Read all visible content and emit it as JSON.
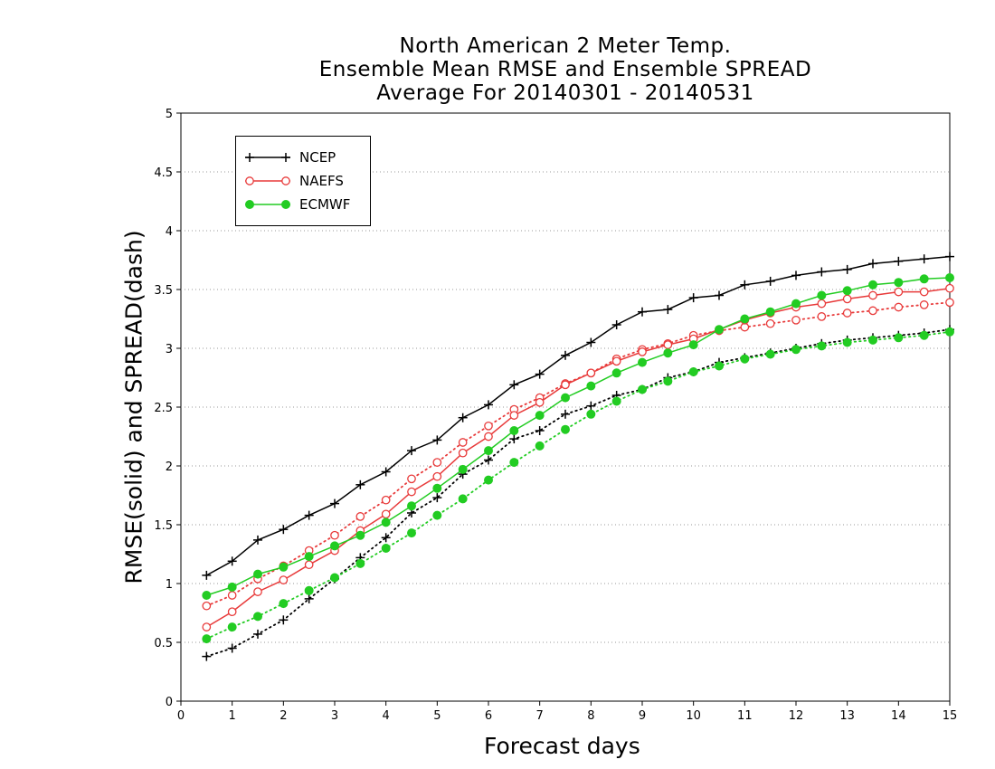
{
  "title_lines": [
    "North American 2 Meter Temp.",
    "Ensemble Mean RMSE and Ensemble SPREAD",
    "Average For 20140301 - 20140531"
  ],
  "chart_data": {
    "type": "line",
    "title": "North American 2 Meter Temp. Ensemble Mean RMSE and Ensemble SPREAD Average For 20140301 - 20140531",
    "xlabel": "Forecast days",
    "ylabel": "RMSE(solid) and SPREAD(dash)",
    "xlim": [
      0,
      15
    ],
    "ylim": [
      0,
      5
    ],
    "x_ticks": [
      "0",
      "1",
      "2",
      "3",
      "4",
      "5",
      "6",
      "7",
      "8",
      "9",
      "10",
      "11",
      "12",
      "13",
      "14",
      "15"
    ],
    "y_ticks": [
      "0",
      "0.5",
      "1",
      "1.5",
      "2",
      "2.5",
      "3",
      "3.5",
      "4",
      "4.5",
      "5"
    ],
    "grid": "horizontal dotted",
    "legend_position": "top-left",
    "x": [
      0.5,
      1,
      1.5,
      2,
      2.5,
      3,
      3.5,
      4,
      4.5,
      5,
      5.5,
      6,
      6.5,
      7,
      7.5,
      8,
      8.5,
      9,
      9.5,
      10,
      10.5,
      11,
      11.5,
      12,
      12.5,
      13,
      13.5,
      14,
      14.5,
      15
    ],
    "series": [
      {
        "name": "NCEP",
        "style": "solid",
        "color": "#000000",
        "marker": "plus",
        "values": [
          1.07,
          1.19,
          1.37,
          1.46,
          1.58,
          1.68,
          1.84,
          1.95,
          2.13,
          2.22,
          2.41,
          2.52,
          2.69,
          2.78,
          2.94,
          3.05,
          3.2,
          3.31,
          3.33,
          3.43,
          3.45,
          3.54,
          3.57,
          3.62,
          3.65,
          3.67,
          3.72,
          3.74,
          3.76,
          3.78
        ]
      },
      {
        "name": "NAEFS",
        "style": "solid",
        "color": "#e83a3a",
        "marker": "open-circle",
        "values": [
          0.63,
          0.76,
          0.93,
          1.03,
          1.16,
          1.28,
          1.45,
          1.59,
          1.78,
          1.91,
          2.11,
          2.25,
          2.43,
          2.54,
          2.69,
          2.79,
          2.89,
          2.97,
          3.03,
          3.08,
          3.16,
          3.24,
          3.3,
          3.35,
          3.38,
          3.42,
          3.45,
          3.48,
          3.48,
          3.51
        ]
      },
      {
        "name": "ECMWF",
        "style": "solid",
        "color": "#22cc22",
        "marker": "filled-circle",
        "values": [
          0.9,
          0.97,
          1.08,
          1.14,
          1.23,
          1.32,
          1.41,
          1.52,
          1.66,
          1.81,
          1.97,
          2.13,
          2.3,
          2.43,
          2.58,
          2.68,
          2.79,
          2.88,
          2.96,
          3.03,
          3.16,
          3.25,
          3.31,
          3.38,
          3.45,
          3.49,
          3.54,
          3.56,
          3.59,
          3.6
        ]
      },
      {
        "name": "NCEP",
        "style": "dash",
        "color": "#000000",
        "marker": "plus",
        "values": [
          0.38,
          0.45,
          0.57,
          0.69,
          0.87,
          1.04,
          1.22,
          1.39,
          1.6,
          1.73,
          1.93,
          2.05,
          2.23,
          2.3,
          2.44,
          2.51,
          2.6,
          2.65,
          2.75,
          2.8,
          2.88,
          2.92,
          2.96,
          3.0,
          3.04,
          3.07,
          3.09,
          3.11,
          3.13,
          3.16
        ]
      },
      {
        "name": "NAEFS",
        "style": "dash",
        "color": "#e83a3a",
        "marker": "open-circle",
        "values": [
          0.81,
          0.9,
          1.04,
          1.15,
          1.28,
          1.41,
          1.57,
          1.71,
          1.89,
          2.03,
          2.2,
          2.34,
          2.48,
          2.58,
          2.7,
          2.79,
          2.91,
          2.99,
          3.04,
          3.11,
          3.15,
          3.18,
          3.21,
          3.24,
          3.27,
          3.3,
          3.32,
          3.35,
          3.37,
          3.39
        ]
      },
      {
        "name": "ECMWF",
        "style": "dash",
        "color": "#22cc22",
        "marker": "filled-circle",
        "values": [
          0.53,
          0.63,
          0.72,
          0.83,
          0.94,
          1.05,
          1.17,
          1.3,
          1.43,
          1.58,
          1.72,
          1.88,
          2.03,
          2.17,
          2.31,
          2.44,
          2.55,
          2.65,
          2.72,
          2.8,
          2.85,
          2.91,
          2.95,
          2.99,
          3.02,
          3.05,
          3.07,
          3.09,
          3.11,
          3.14
        ]
      }
    ]
  },
  "legend": {
    "items": [
      {
        "label": "NCEP",
        "color": "#000000",
        "marker": "plus"
      },
      {
        "label": "NAEFS",
        "color": "#e83a3a",
        "marker": "open-circle"
      },
      {
        "label": "ECMWF",
        "color": "#22cc22",
        "marker": "filled-circle"
      }
    ]
  }
}
